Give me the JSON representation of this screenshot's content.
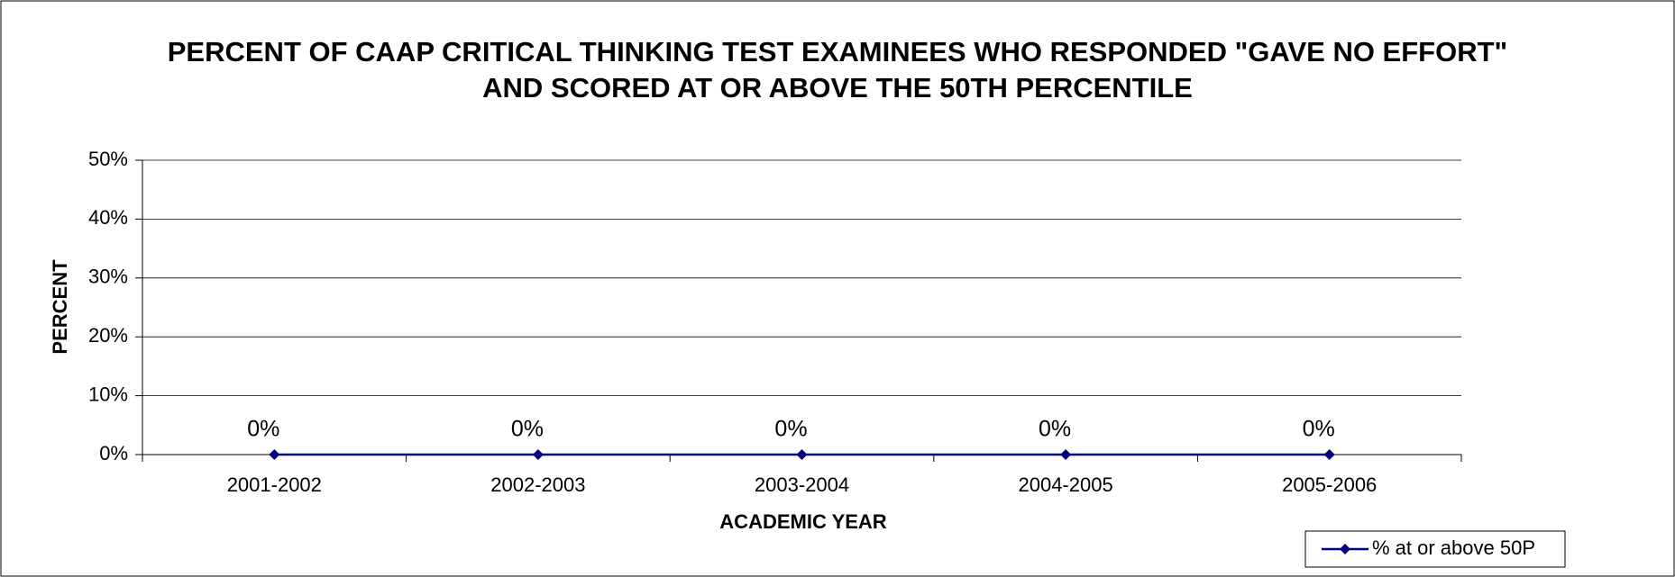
{
  "chart_data": {
    "type": "line",
    "title": "PERCENT OF CAAP CRITICAL THINKING TEST EXAMINEES WHO RESPONDED \"GAVE NO EFFORT\" AND SCORED AT OR ABOVE THE 50TH PERCENTILE",
    "x_label": "ACADEMIC YEAR",
    "y_label": "PERCENT",
    "categories": [
      "2001-2002",
      "2002-2003",
      "2003-2004",
      "2004-2005",
      "2005-2006"
    ],
    "series": [
      {
        "name": "% at or above 50P",
        "color": "#000080",
        "values": [
          0,
          0,
          0,
          0,
          0
        ],
        "value_labels": [
          "0%",
          "0%",
          "0%",
          "0%",
          "0%"
        ]
      }
    ],
    "ylim": [
      0,
      50
    ],
    "yticks": [
      {
        "value": 0,
        "label": "0%"
      },
      {
        "value": 10,
        "label": "10%"
      },
      {
        "value": 20,
        "label": "20%"
      },
      {
        "value": 30,
        "label": "30%"
      },
      {
        "value": 40,
        "label": "40%"
      },
      {
        "value": 50,
        "label": "50%"
      }
    ],
    "grid": true,
    "legend": "bottom-right"
  }
}
